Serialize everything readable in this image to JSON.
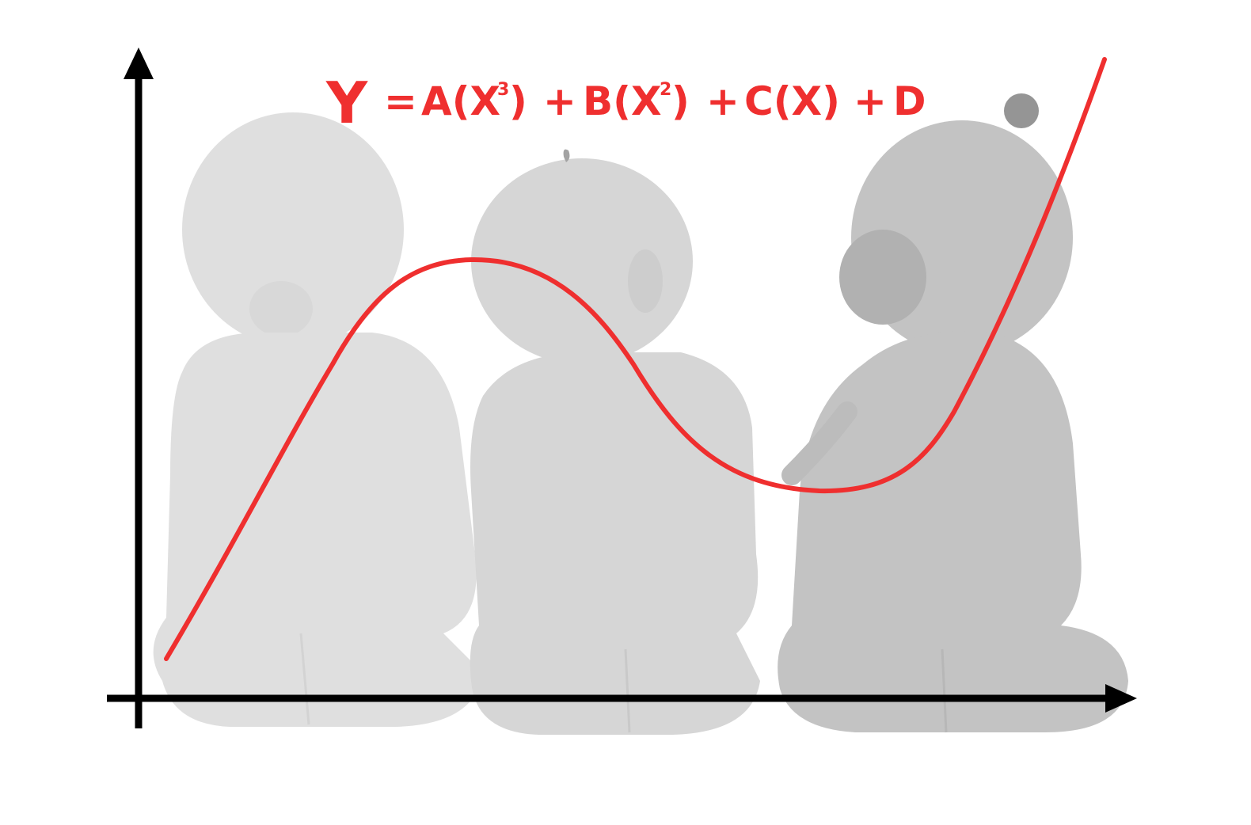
{
  "equation": {
    "y": "Y",
    "eq": "=",
    "a": "A(X",
    "a_exp": "3",
    "a_close": ")",
    "plus1": "+",
    "b": "B(X",
    "b_exp": "2",
    "b_close": ")",
    "plus2": "+",
    "c": "C(X)",
    "plus3": "+",
    "d": "D"
  },
  "colors": {
    "curve": "#ef2f2f",
    "axes": "#000000",
    "background": "#ffffff",
    "photo_tint": "#d6d6d6"
  },
  "illustration": {
    "photo": "three babies sitting seen from behind, greyscale",
    "curve": "cubic polynomial curve",
    "axes": "x-axis and y-axis arrows"
  }
}
